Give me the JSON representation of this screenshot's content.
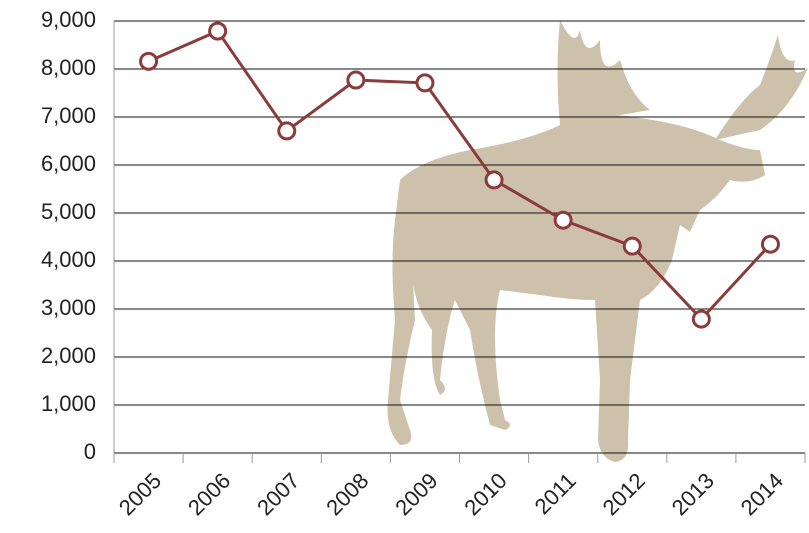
{
  "chart_data": {
    "type": "line",
    "categories": [
      "2005",
      "2006",
      "2007",
      "2008",
      "2009",
      "2010",
      "2011",
      "2012",
      "2013",
      "2014"
    ],
    "series": [
      {
        "color": "#8c3b3b",
        "values": [
          8160,
          8790,
          6710,
          7770,
          7710,
          5690,
          4850,
          4310,
          2790,
          4350
        ]
      }
    ],
    "ylim": [
      0,
      9000
    ],
    "yticks": [
      0,
      {
        "value": 1000,
        "label": "1,000"
      },
      {
        "value": 2000,
        "label": "2,000"
      },
      {
        "value": 3000,
        "label": "3,000"
      },
      {
        "value": 4000,
        "label": "4,000"
      },
      {
        "value": 5000,
        "label": "5,000"
      },
      {
        "value": 6000,
        "label": "6,000"
      },
      {
        "value": 7000,
        "label": "7,000"
      },
      {
        "value": 8000,
        "label": "8,000"
      },
      {
        "value": 9000,
        "label": "9,000"
      }
    ],
    "grid": true
  }
}
